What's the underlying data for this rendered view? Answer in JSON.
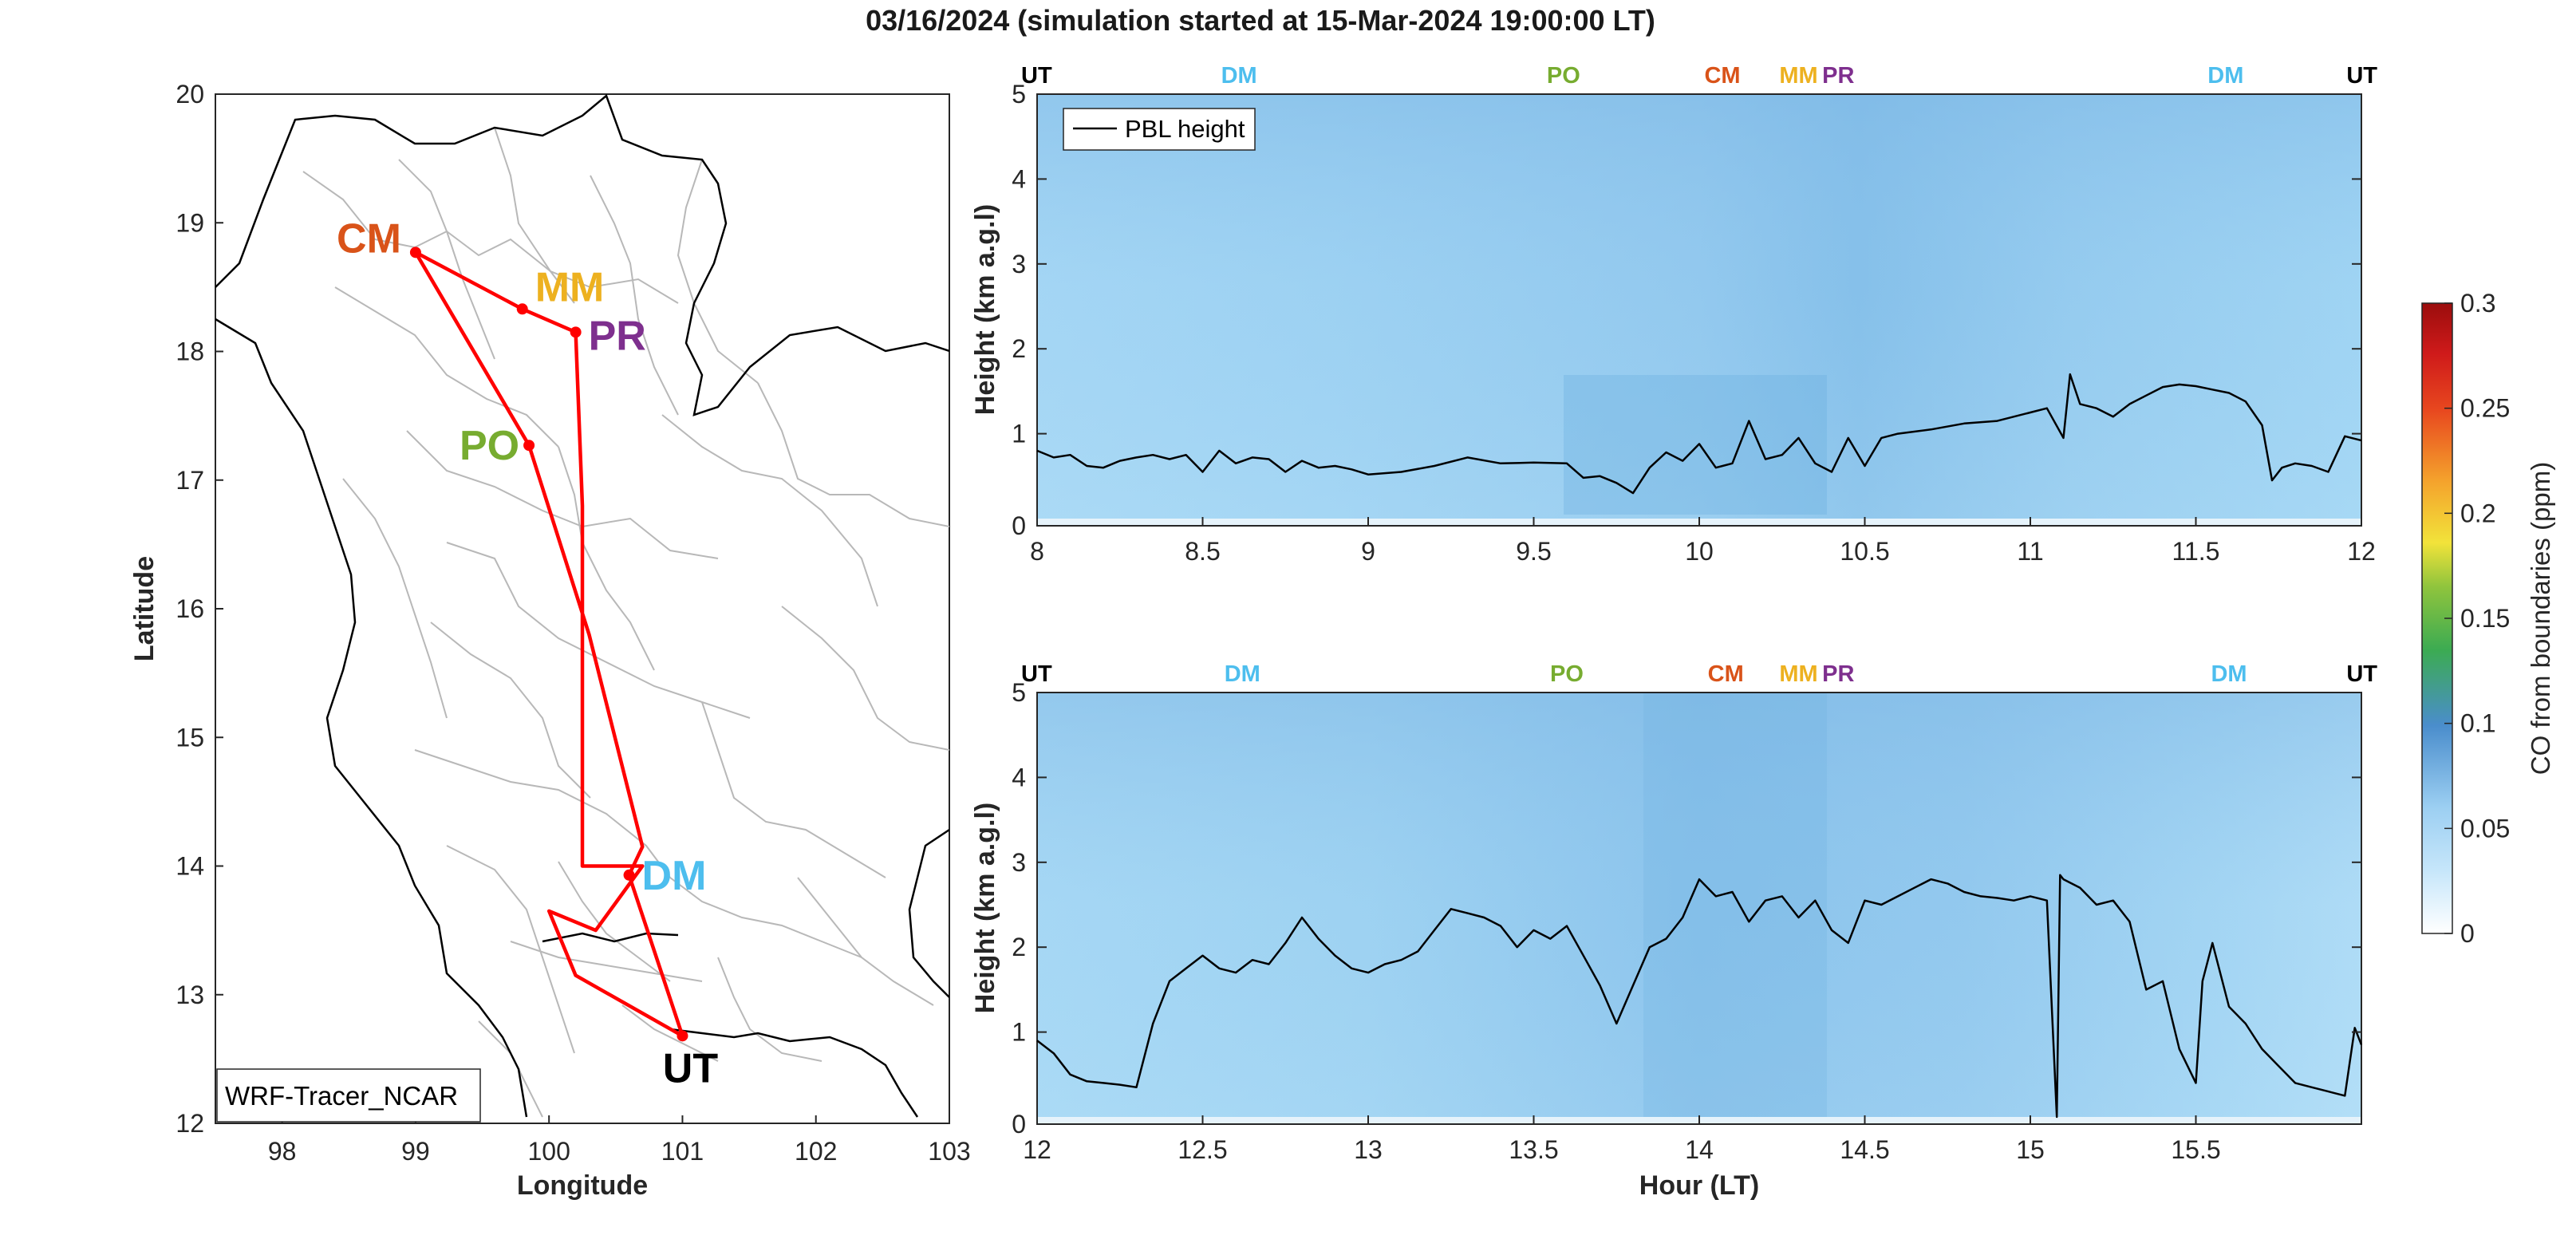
{
  "title": "03/16/2024 (simulation started at 15-Mar-2024 19:00:00 LT)",
  "colors": {
    "CM": "#d95319",
    "MM": "#edb120",
    "PR": "#7e2f8e",
    "PO": "#77ac30",
    "DM": "#4dbeee",
    "UT": "#000000",
    "track": "#ff0000"
  },
  "chart_data": [
    {
      "type": "map",
      "xlabel": "Longitude",
      "ylabel": "Latitude",
      "xlim": [
        97.5,
        103
      ],
      "ylim": [
        12,
        20
      ],
      "xticks": [
        98,
        99,
        100,
        101,
        102,
        103
      ],
      "yticks": [
        12,
        13,
        14,
        15,
        16,
        17,
        18,
        19,
        20
      ],
      "legend_text": "WRF-Tracer_NCAR",
      "sites": [
        {
          "name": "CM",
          "lon": 99.0,
          "lat": 18.77
        },
        {
          "name": "MM",
          "lon": 99.8,
          "lat": 18.33
        },
        {
          "name": "PR",
          "lon": 100.2,
          "lat": 18.15
        },
        {
          "name": "PO",
          "lon": 99.85,
          "lat": 17.27
        },
        {
          "name": "DM",
          "lon": 100.6,
          "lat": 13.93
        },
        {
          "name": "UT",
          "lon": 101.0,
          "lat": 12.68
        }
      ],
      "track": [
        [
          101.0,
          12.68
        ],
        [
          100.6,
          13.93
        ],
        [
          100.7,
          14.15
        ],
        [
          100.3,
          15.8
        ],
        [
          99.85,
          17.27
        ],
        [
          99.0,
          18.77
        ],
        [
          99.8,
          18.33
        ],
        [
          100.2,
          18.15
        ],
        [
          100.25,
          16.8
        ],
        [
          100.25,
          14.0
        ],
        [
          100.7,
          14.0
        ],
        [
          100.35,
          13.5
        ],
        [
          100.0,
          13.65
        ],
        [
          100.2,
          13.15
        ],
        [
          101.0,
          12.68
        ]
      ]
    },
    {
      "type": "heatmap",
      "ylabel": "Height (km a.g.l)",
      "xlim": [
        8,
        12
      ],
      "ylim": [
        0,
        5
      ],
      "xticks": [
        8,
        8.5,
        9,
        9.5,
        10,
        10.5,
        11,
        11.5,
        12
      ],
      "yticks": [
        0,
        1,
        2,
        3,
        4,
        5
      ],
      "legend": [
        "PBL height"
      ],
      "top_markers": [
        {
          "label": "UT",
          "x": 8.0
        },
        {
          "label": "DM",
          "x": 8.61
        },
        {
          "label": "PO",
          "x": 9.59
        },
        {
          "label": "CM",
          "x": 10.07
        },
        {
          "label": "MM",
          "x": 10.3
        },
        {
          "label": "PR",
          "x": 10.42
        },
        {
          "label": "DM",
          "x": 11.59
        },
        {
          "label": "UT",
          "x": 11.97
        }
      ],
      "pbl_height": {
        "x": [
          8.0,
          8.05,
          8.1,
          8.15,
          8.2,
          8.25,
          8.3,
          8.35,
          8.4,
          8.45,
          8.5,
          8.55,
          8.6,
          8.65,
          8.7,
          8.75,
          8.8,
          8.85,
          8.9,
          8.95,
          9.0,
          9.1,
          9.2,
          9.3,
          9.4,
          9.5,
          9.6,
          9.65,
          9.7,
          9.75,
          9.8,
          9.85,
          9.9,
          9.95,
          10.0,
          10.05,
          10.1,
          10.15,
          10.2,
          10.25,
          10.3,
          10.35,
          10.4,
          10.45,
          10.5,
          10.55,
          10.6,
          10.7,
          10.8,
          10.9,
          11.0,
          11.05,
          11.1,
          11.12,
          11.15,
          11.2,
          11.25,
          11.3,
          11.35,
          11.4,
          11.45,
          11.5,
          11.55,
          11.6,
          11.65,
          11.7,
          11.73,
          11.76,
          11.8,
          11.85,
          11.9,
          11.95,
          12.0
        ],
        "values": [
          0.8,
          0.72,
          0.75,
          0.62,
          0.6,
          0.68,
          0.72,
          0.75,
          0.7,
          0.75,
          0.55,
          0.8,
          0.65,
          0.72,
          0.7,
          0.55,
          0.68,
          0.6,
          0.62,
          0.58,
          0.52,
          0.55,
          0.62,
          0.72,
          0.65,
          0.66,
          0.65,
          0.48,
          0.5,
          0.42,
          0.3,
          0.6,
          0.78,
          0.68,
          0.88,
          0.6,
          0.65,
          1.15,
          0.7,
          0.75,
          0.95,
          0.65,
          0.55,
          0.95,
          0.62,
          0.95,
          1.0,
          1.05,
          1.12,
          1.15,
          1.25,
          1.3,
          0.95,
          1.7,
          1.35,
          1.3,
          1.2,
          1.35,
          1.45,
          1.55,
          1.58,
          1.56,
          1.52,
          1.48,
          1.38,
          1.1,
          0.45,
          0.6,
          0.65,
          0.62,
          0.55,
          0.97,
          0.92
        ]
      }
    },
    {
      "type": "heatmap",
      "xlabel": "Hour (LT)",
      "ylabel": "Height (km a.g.l)",
      "xlim": [
        12,
        16
      ],
      "ylim": [
        0,
        5
      ],
      "xticks": [
        12,
        12.5,
        13,
        13.5,
        14,
        14.5,
        15,
        15.5
      ],
      "yticks": [
        0,
        1,
        2,
        3,
        4,
        5
      ],
      "top_markers": [
        {
          "label": "UT",
          "x": 12.0
        },
        {
          "label": "DM",
          "x": 12.62
        },
        {
          "label": "PO",
          "x": 13.6
        },
        {
          "label": "CM",
          "x": 14.08
        },
        {
          "label": "MM",
          "x": 14.3
        },
        {
          "label": "PR",
          "x": 14.42
        },
        {
          "label": "DM",
          "x": 15.6
        },
        {
          "label": "UT",
          "x": 15.98
        }
      ],
      "pbl_height": {
        "x": [
          12.0,
          12.05,
          12.1,
          12.15,
          12.2,
          12.25,
          12.3,
          12.35,
          12.4,
          12.45,
          12.5,
          12.55,
          12.6,
          12.65,
          12.7,
          12.75,
          12.8,
          12.85,
          12.9,
          12.95,
          13.0,
          13.05,
          13.1,
          13.15,
          13.2,
          13.25,
          13.3,
          13.35,
          13.4,
          13.45,
          13.5,
          13.55,
          13.6,
          13.65,
          13.7,
          13.75,
          13.8,
          13.85,
          13.9,
          13.95,
          14.0,
          14.05,
          14.1,
          14.15,
          14.2,
          14.25,
          14.3,
          14.35,
          14.4,
          14.45,
          14.5,
          14.55,
          14.6,
          14.65,
          14.7,
          14.75,
          14.8,
          14.85,
          14.9,
          14.95,
          15.0,
          15.05,
          15.08,
          15.09,
          15.1,
          15.15,
          15.2,
          15.25,
          15.3,
          15.35,
          15.4,
          15.45,
          15.5,
          15.52,
          15.55,
          15.6,
          15.65,
          15.7,
          15.75,
          15.8,
          15.85,
          15.9,
          15.95,
          15.98,
          16.0
        ],
        "values": [
          0.9,
          0.75,
          0.5,
          0.42,
          0.4,
          0.38,
          0.35,
          1.1,
          1.6,
          1.75,
          1.9,
          1.75,
          1.7,
          1.85,
          1.8,
          2.05,
          2.35,
          2.1,
          1.9,
          1.75,
          1.7,
          1.8,
          1.85,
          1.95,
          2.2,
          2.45,
          2.4,
          2.35,
          2.25,
          2.0,
          2.2,
          2.1,
          2.25,
          1.9,
          1.55,
          1.1,
          1.55,
          2.0,
          2.1,
          2.35,
          2.8,
          2.6,
          2.65,
          2.3,
          2.55,
          2.6,
          2.35,
          2.55,
          2.2,
          2.05,
          2.55,
          2.5,
          2.6,
          2.7,
          2.8,
          2.75,
          2.65,
          2.6,
          2.58,
          2.55,
          2.6,
          2.55,
          0.0,
          2.85,
          2.8,
          2.7,
          2.5,
          2.55,
          2.3,
          1.5,
          1.6,
          0.8,
          0.4,
          1.6,
          2.05,
          1.3,
          1.1,
          0.8,
          0.6,
          0.4,
          0.35,
          0.3,
          0.25,
          1.05,
          0.85
        ]
      }
    },
    {
      "type": "colorbar",
      "label": "CO from boundaries (ppm)",
      "range": [
        0,
        0.3
      ],
      "ticks": [
        "0",
        "0.05",
        "0.1",
        "0.15",
        "0.2",
        "0.25",
        "0.3"
      ]
    }
  ]
}
